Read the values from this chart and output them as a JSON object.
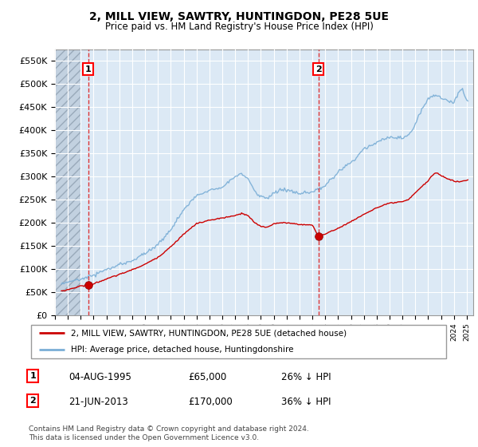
{
  "title": "2, MILL VIEW, SAWTRY, HUNTINGDON, PE28 5UE",
  "subtitle": "Price paid vs. HM Land Registry's House Price Index (HPI)",
  "ylim": [
    0,
    575000
  ],
  "yticks": [
    0,
    50000,
    100000,
    150000,
    200000,
    250000,
    300000,
    350000,
    400000,
    450000,
    500000,
    550000
  ],
  "ytick_labels": [
    "£0",
    "£50K",
    "£100K",
    "£150K",
    "£200K",
    "£250K",
    "£300K",
    "£350K",
    "£400K",
    "£450K",
    "£500K",
    "£550K"
  ],
  "xlim_start": 1993.0,
  "xlim_end": 2025.5,
  "hatch_end": 1995.0,
  "bg_color": "#dce9f5",
  "sale1_x": 1995.59,
  "sale1_price": 65000,
  "sale2_x": 2013.47,
  "sale2_price": 170000,
  "legend_line1": "2, MILL VIEW, SAWTRY, HUNTINGDON, PE28 5UE (detached house)",
  "legend_line2": "HPI: Average price, detached house, Huntingdonshire",
  "note1_label": "1",
  "note1_date": "04-AUG-1995",
  "note1_price": "£65,000",
  "note1_hpi": "26% ↓ HPI",
  "note2_label": "2",
  "note2_date": "21-JUN-2013",
  "note2_price": "£170,000",
  "note2_hpi": "36% ↓ HPI",
  "footer": "Contains HM Land Registry data © Crown copyright and database right 2024.\nThis data is licensed under the Open Government Licence v3.0.",
  "red_line_color": "#cc0000",
  "blue_line_color": "#7aaed6"
}
